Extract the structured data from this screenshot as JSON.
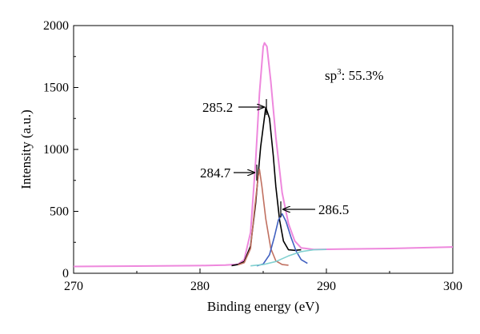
{
  "chart_data": {
    "type": "line",
    "xlabel": "Binding energy (eV)",
    "ylabel": "Intensity (a.u.)",
    "xlim": [
      270,
      300
    ],
    "ylim": [
      0,
      2000
    ],
    "x_ticks": [
      270,
      280,
      290,
      300
    ],
    "x_tick_labels": [
      "270",
      "280",
      "290",
      "300"
    ],
    "y_ticks": [
      0,
      500,
      1000,
      1500,
      2000
    ],
    "y_tick_labels": [
      "0",
      "500",
      "1000",
      "1500",
      "2000"
    ],
    "grid": false,
    "series": [
      {
        "color": "#ee88dd",
        "points": [
          [
            270,
            55
          ],
          [
            275,
            58
          ],
          [
            280,
            62
          ],
          [
            282,
            66
          ],
          [
            283,
            72
          ],
          [
            283.5,
            110
          ],
          [
            284,
            330
          ],
          [
            284.4,
            900
          ],
          [
            284.7,
            1450
          ],
          [
            285,
            1830
          ],
          [
            285.1,
            1860
          ],
          [
            285.3,
            1830
          ],
          [
            285.6,
            1550
          ],
          [
            286,
            1100
          ],
          [
            286.5,
            650
          ],
          [
            287,
            400
          ],
          [
            287.5,
            260
          ],
          [
            288,
            205
          ],
          [
            289,
            192
          ],
          [
            291,
            195
          ],
          [
            295,
            200
          ],
          [
            300,
            212
          ]
        ]
      },
      {
        "color": "#000000",
        "points": [
          [
            282.5,
            62
          ],
          [
            283,
            70
          ],
          [
            283.5,
            95
          ],
          [
            284,
            220
          ],
          [
            284.4,
            560
          ],
          [
            284.8,
            1020
          ],
          [
            285.2,
            1340
          ],
          [
            285.5,
            1250
          ],
          [
            285.8,
            950
          ],
          [
            286,
            700
          ],
          [
            286.3,
            430
          ],
          [
            286.6,
            260
          ],
          [
            287,
            190
          ],
          [
            287.5,
            185
          ],
          [
            288,
            190
          ]
        ]
      },
      {
        "color": "#c07060",
        "points": [
          [
            283,
            68
          ],
          [
            283.5,
            85
          ],
          [
            284,
            200
          ],
          [
            284.3,
            500
          ],
          [
            284.6,
            780
          ],
          [
            284.7,
            840
          ],
          [
            284.9,
            700
          ],
          [
            285.2,
            440
          ],
          [
            285.6,
            200
          ],
          [
            286,
            100
          ],
          [
            286.5,
            70
          ],
          [
            287,
            65
          ]
        ]
      },
      {
        "color": "#4060c0",
        "points": [
          [
            284.5,
            60
          ],
          [
            285,
            75
          ],
          [
            285.5,
            150
          ],
          [
            285.9,
            300
          ],
          [
            286.2,
            430
          ],
          [
            286.5,
            480
          ],
          [
            286.8,
            420
          ],
          [
            287.2,
            290
          ],
          [
            287.6,
            180
          ],
          [
            288,
            110
          ],
          [
            288.5,
            80
          ]
        ]
      },
      {
        "color": "#80d0d0",
        "points": [
          [
            284,
            60
          ],
          [
            285,
            70
          ],
          [
            286,
            95
          ],
          [
            287,
            140
          ],
          [
            288,
            175
          ],
          [
            289,
            190
          ],
          [
            290,
            192
          ]
        ]
      }
    ],
    "annotations": {
      "peak1": "285.2",
      "peak2": "284.7",
      "peak3": "286.5",
      "sp3_base": "sp",
      "sp3_sup": "3",
      "sp3_rest": ": 55.3%"
    }
  }
}
